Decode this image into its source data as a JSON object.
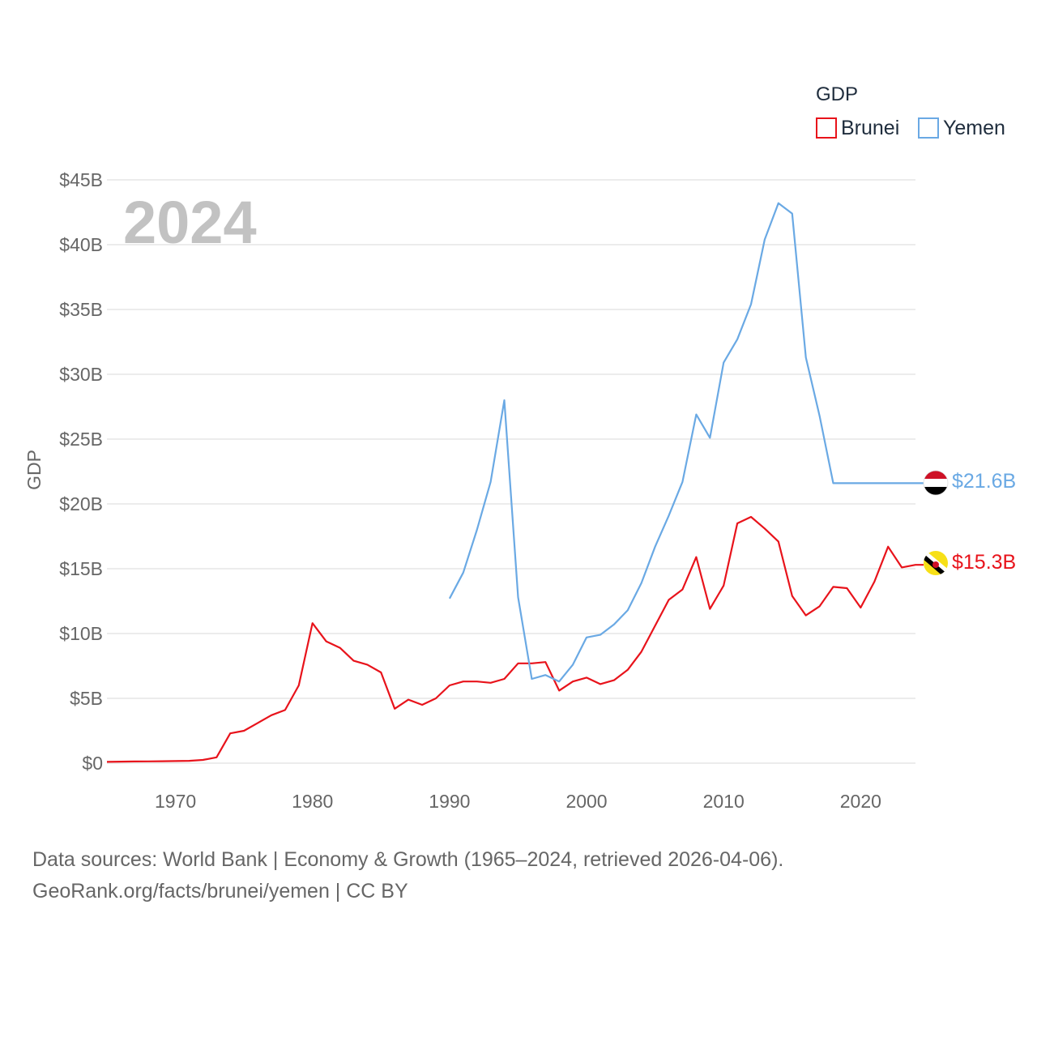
{
  "chart_data": {
    "type": "line",
    "title": "GDP",
    "highlight_year": "2024",
    "xlabel": "",
    "ylabel": "GDP",
    "xlim": [
      1965,
      2024
    ],
    "ylim": [
      0,
      45
    ],
    "x_ticks": [
      1970,
      1980,
      1990,
      2000,
      2010,
      2020
    ],
    "y_ticks": [
      {
        "value": 0,
        "label": "$0"
      },
      {
        "value": 5,
        "label": "$5B"
      },
      {
        "value": 10,
        "label": "$10B"
      },
      {
        "value": 15,
        "label": "$15B"
      },
      {
        "value": 20,
        "label": "$20B"
      },
      {
        "value": 25,
        "label": "$25B"
      },
      {
        "value": 30,
        "label": "$30B"
      },
      {
        "value": 35,
        "label": "$35B"
      },
      {
        "value": 40,
        "label": "$40B"
      },
      {
        "value": 45,
        "label": "$45B"
      }
    ],
    "units": "billions USD",
    "legend": {
      "title": "GDP",
      "position": "top-right"
    },
    "series": [
      {
        "name": "Brunei",
        "color": "#e8131b",
        "end_label": "$15.3B",
        "flag": "brunei-flag-icon",
        "x": [
          1965,
          1966,
          1967,
          1968,
          1969,
          1970,
          1971,
          1972,
          1973,
          1974,
          1975,
          1976,
          1977,
          1978,
          1979,
          1980,
          1981,
          1982,
          1983,
          1984,
          1985,
          1986,
          1987,
          1988,
          1989,
          1990,
          1991,
          1992,
          1993,
          1994,
          1995,
          1996,
          1997,
          1998,
          1999,
          2000,
          2001,
          2002,
          2003,
          2004,
          2005,
          2006,
          2007,
          2008,
          2009,
          2010,
          2011,
          2012,
          2013,
          2014,
          2015,
          2016,
          2017,
          2018,
          2019,
          2020,
          2021,
          2022,
          2023,
          2024
        ],
        "values": [
          0.1,
          0.12,
          0.13,
          0.14,
          0.15,
          0.16,
          0.18,
          0.25,
          0.45,
          2.3,
          2.5,
          3.1,
          3.7,
          4.1,
          6.0,
          10.8,
          9.4,
          8.9,
          7.9,
          7.6,
          7.0,
          4.2,
          4.9,
          4.5,
          5.0,
          6.0,
          6.3,
          6.3,
          6.2,
          6.5,
          7.7,
          7.7,
          7.8,
          5.6,
          6.3,
          6.6,
          6.1,
          6.4,
          7.2,
          8.6,
          10.6,
          12.6,
          13.4,
          15.9,
          11.9,
          13.7,
          18.5,
          19.0,
          18.1,
          17.1,
          12.9,
          11.4,
          12.1,
          13.6,
          13.5,
          12.0,
          14.0,
          16.7,
          15.1,
          15.3
        ]
      },
      {
        "name": "Yemen",
        "color": "#6aa9e4",
        "end_label": "$21.6B",
        "flag": "yemen-flag-icon",
        "x": [
          1990,
          1991,
          1992,
          1993,
          1994,
          1995,
          1996,
          1997,
          1998,
          1999,
          2000,
          2001,
          2002,
          2003,
          2004,
          2005,
          2006,
          2007,
          2008,
          2009,
          2010,
          2011,
          2012,
          2013,
          2014,
          2015,
          2016,
          2017,
          2018,
          2019,
          2020,
          2021,
          2022,
          2023,
          2024
        ],
        "values": [
          12.7,
          14.7,
          18.0,
          21.7,
          28.0,
          12.8,
          6.5,
          6.8,
          6.3,
          7.6,
          9.7,
          9.9,
          10.7,
          11.8,
          13.9,
          16.7,
          19.1,
          21.7,
          26.9,
          25.1,
          30.9,
          32.7,
          35.4,
          40.4,
          43.2,
          42.4,
          31.3,
          26.8,
          21.6,
          21.6,
          21.6,
          21.6,
          21.6,
          21.6,
          21.6
        ]
      }
    ]
  },
  "footer": {
    "line1": "Data sources: World Bank | Economy & Growth (1965–2024, retrieved 2026-04-06).",
    "line2": "GeoRank.org/facts/brunei/yemen | CC BY"
  }
}
